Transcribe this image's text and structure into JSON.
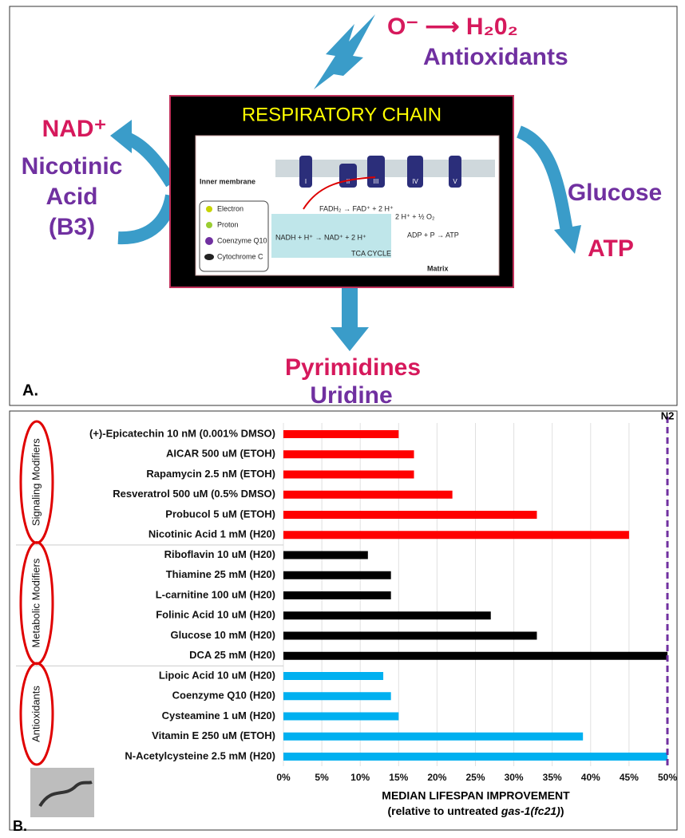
{
  "panel_a": {
    "label": "A.",
    "title": "RESPIRATORY CHAIN",
    "ros": "O⁻ ⟶ H₂0₂",
    "antioxidants": "Antioxidants",
    "nad": "NAD⁺",
    "nicotinic_acid": [
      "Nicotinic",
      "Acid",
      "(B3)"
    ],
    "glucose": "Glucose",
    "atp": "ATP",
    "pyrimidines": "Pyrimidines",
    "uridine": "Uridine",
    "inset": {
      "inner_membrane": "Inner membrane",
      "legend": [
        "Electron",
        "Proton",
        "Coenzyme Q10",
        "Cytochrome C"
      ],
      "complexes": [
        "I",
        "II",
        "III",
        "IV",
        "V"
      ],
      "reactions": [
        "FADH₂ → FAD⁺ + 2 H⁺",
        "NADH + H⁺ → NAD⁺ + 2 H⁺",
        "2 H⁺ + ½ O₂",
        "ADP + P → ATP"
      ],
      "tca": "TCA CYCLE",
      "matrix": "Matrix"
    }
  },
  "panel_b_label": "B.",
  "chart_data": {
    "type": "hbar",
    "categories": [
      "(+)-Epicatechin 10 nM (0.001% DMSO)",
      "AICAR 500 uM (ETOH)",
      "Rapamycin 2.5 nM (ETOH)",
      "Resveratrol 500 uM (0.5% DMSO)",
      "Probucol 5 uM (ETOH)",
      "Nicotinic Acid 1 mM (H20)",
      "Riboflavin 10 uM (H20)",
      "Thiamine 25 mM (H20)",
      "L-carnitine 100 uM (H20)",
      "Folinic Acid 10 uM (H20)",
      "Glucose 10 mM (H20)",
      "DCA 25 mM (H20)",
      "Lipoic Acid 10 uM (H20)",
      "Coenzyme Q10 (H20)",
      "Cysteamine 1 uM (H20)",
      "Vitamin E 250 uM (ETOH)",
      "N-Acetylcysteine 2.5 mM (H20)"
    ],
    "series": [
      {
        "name": "Signaling Modifiers",
        "color": "#ff0000",
        "values": [
          15,
          17,
          17,
          22,
          33,
          45,
          null,
          null,
          null,
          null,
          null,
          null,
          null,
          null,
          null,
          null,
          null
        ]
      },
      {
        "name": "Metabolic Modifiers",
        "color": "#000000",
        "values": [
          null,
          null,
          null,
          null,
          null,
          null,
          11,
          14,
          14,
          27,
          33,
          50,
          null,
          null,
          null,
          null,
          null
        ]
      },
      {
        "name": "Antioxidants",
        "color": "#00b0f0",
        "values": [
          null,
          null,
          null,
          null,
          null,
          null,
          null,
          null,
          null,
          null,
          null,
          null,
          13,
          14,
          15,
          39,
          50
        ]
      }
    ],
    "xlim": [
      0,
      50
    ],
    "xticks": [
      {
        "value": 0,
        "label": "0%"
      },
      {
        "value": 5,
        "label": "5%"
      },
      {
        "value": 10,
        "label": "10%"
      },
      {
        "value": 15,
        "label": "15%"
      },
      {
        "value": 20,
        "label": "20%"
      },
      {
        "value": 25,
        "label": "25%"
      },
      {
        "value": 30,
        "label": "30%"
      },
      {
        "value": 35,
        "label": "35%"
      },
      {
        "value": 40,
        "label": "40%"
      },
      {
        "value": 45,
        "label": "45%"
      },
      {
        "value": 50,
        "label": "50%"
      }
    ],
    "grid": true,
    "reference_line": {
      "value": 50,
      "label": "N2",
      "color": "#7030a0"
    },
    "xlabel": "MEDIAN LIFESPAN IMPROVEMENT",
    "xlabel_line2": {
      "before": "(relative to untreated ",
      "italic": "gas-1(fc21)",
      "after": ")"
    }
  }
}
